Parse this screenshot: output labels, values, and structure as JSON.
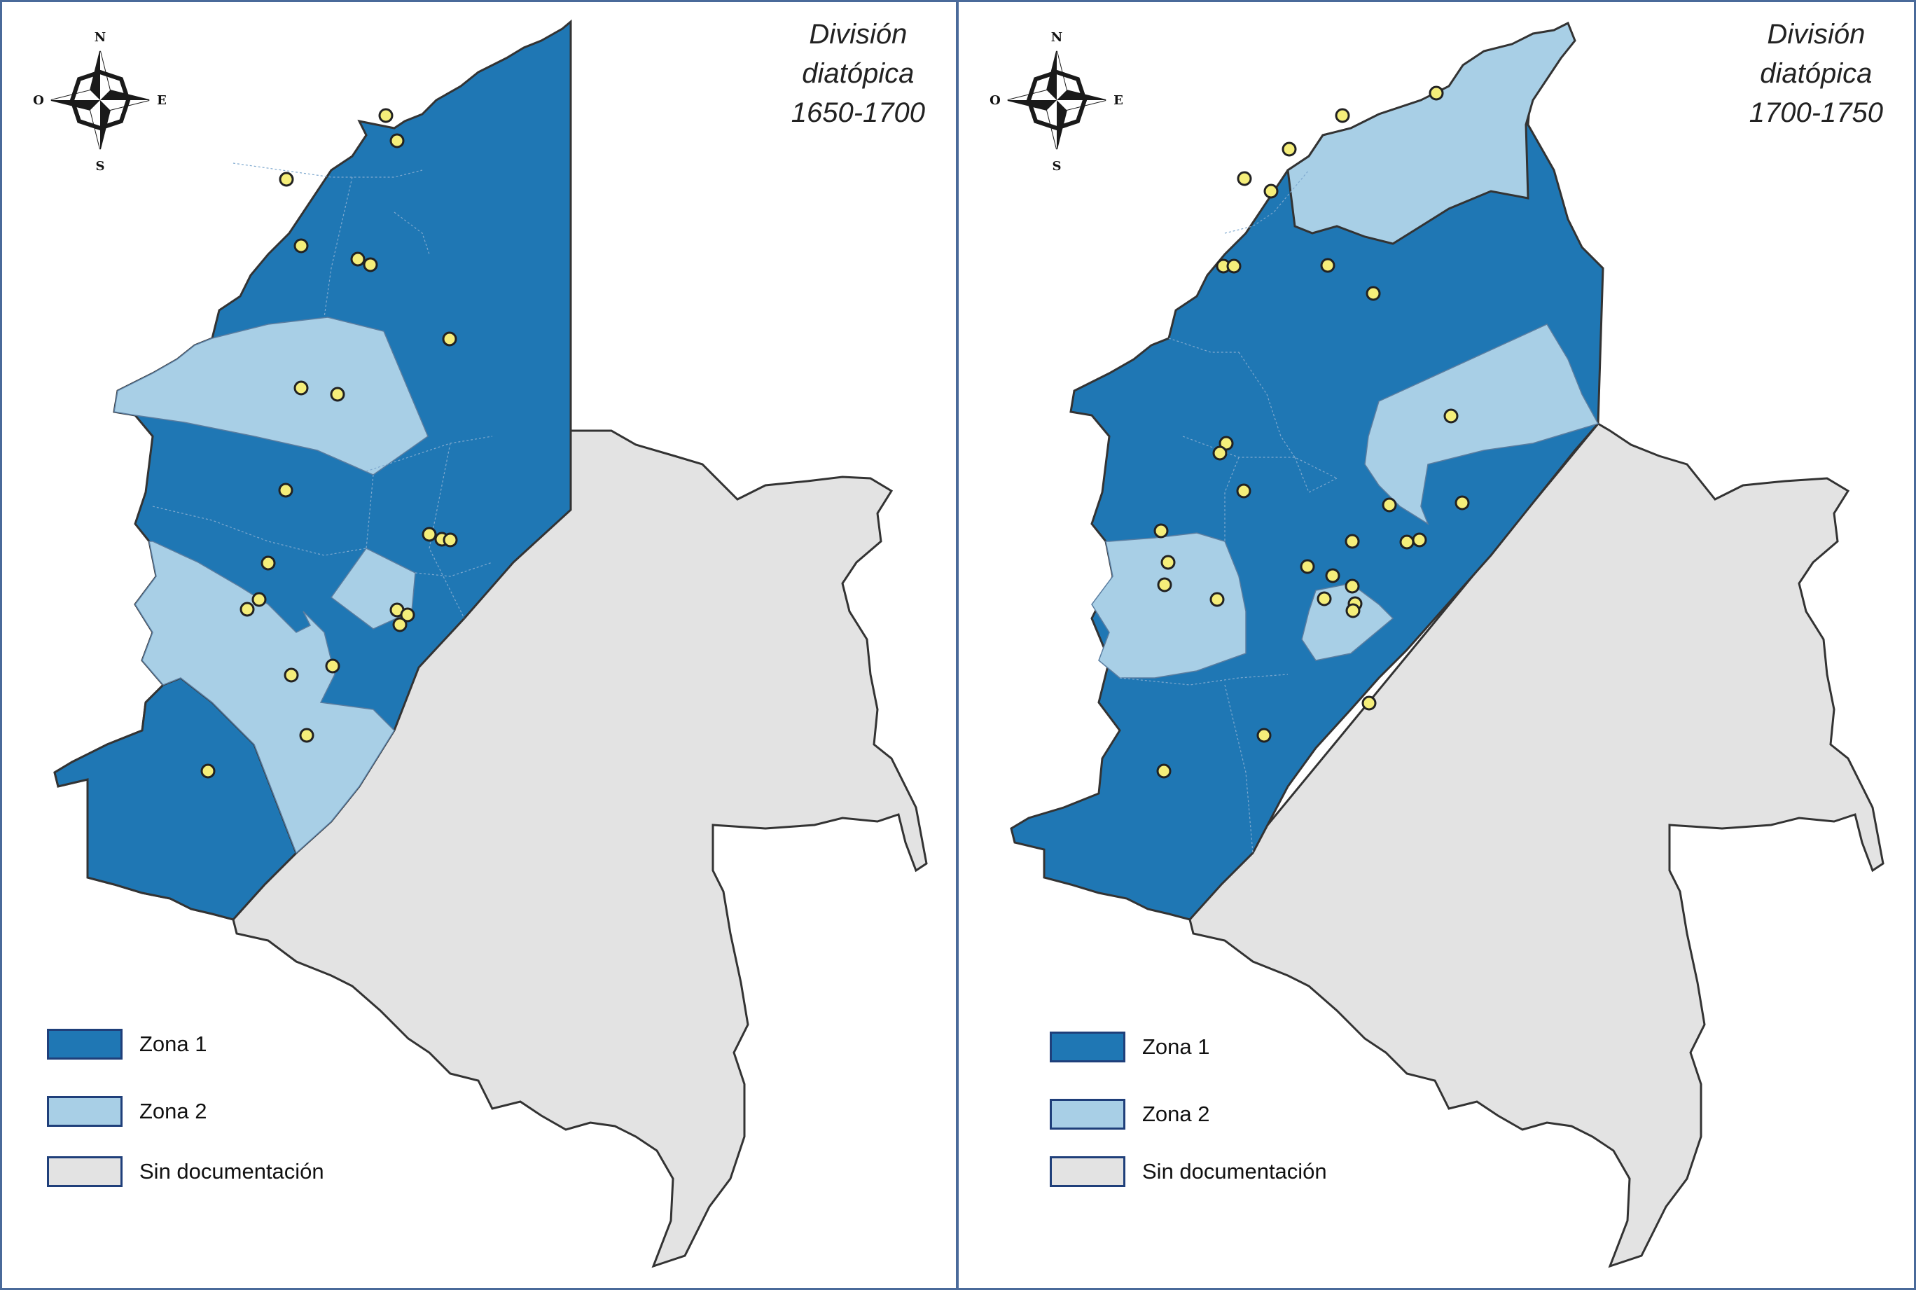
{
  "colors": {
    "zona1": "#1f77b4",
    "zona2": "#a8cfe6",
    "sin_documentacion": "#e3e3e3",
    "outline": "#333333",
    "marker_fill": "#f5ee7a",
    "frame": "#4a6a9a"
  },
  "compass": {
    "n": "N",
    "s": "S",
    "e": "E",
    "w": "O",
    "icon": "compass-rose-icon"
  },
  "legend": {
    "zona1": "Zona 1",
    "zona2": "Zona 2",
    "sin_documentacion": "Sin documentación"
  },
  "maps": [
    {
      "title_line1": "División",
      "title_line2": "diatópica",
      "title_line3": "1650-1700",
      "marker_count": 21
    },
    {
      "title_line1": "División",
      "title_line2": "diatópica",
      "title_line3": "1700-1750",
      "marker_count": 30
    }
  ]
}
